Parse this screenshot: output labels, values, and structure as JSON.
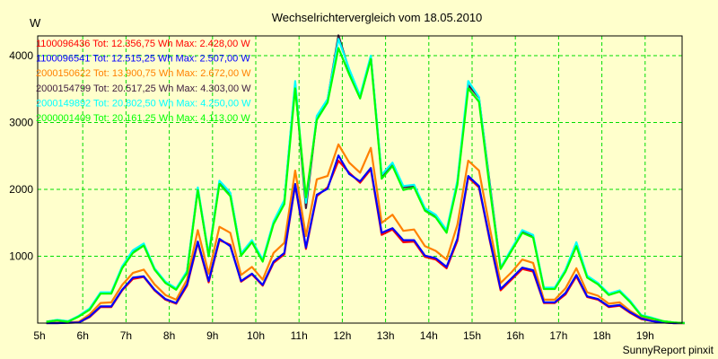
{
  "chart_data": {
    "type": "line",
    "title": "Wechselrichtervergleich vom 18.05.2010",
    "ylabel": "W",
    "xlabel": "",
    "footer": "SunnyReport pinxit",
    "xlim": [
      5,
      19.92
    ],
    "ylim": [
      0,
      4320
    ],
    "grid": true,
    "legend_placement": "top-left",
    "x_ticks": [
      {
        "v": 5,
        "label": "5h"
      },
      {
        "v": 6,
        "label": "6h"
      },
      {
        "v": 7,
        "label": "7h"
      },
      {
        "v": 8,
        "label": "8h"
      },
      {
        "v": 9,
        "label": "9h"
      },
      {
        "v": 10,
        "label": "10h"
      },
      {
        "v": 11,
        "label": "11h"
      },
      {
        "v": 12,
        "label": "12h"
      },
      {
        "v": 13,
        "label": "13h"
      },
      {
        "v": 14,
        "label": "14h"
      },
      {
        "v": 15,
        "label": "15h"
      },
      {
        "v": 16,
        "label": "16h"
      },
      {
        "v": 17,
        "label": "17h"
      },
      {
        "v": 18,
        "label": "18h"
      },
      {
        "v": 19,
        "label": "19h"
      }
    ],
    "y_ticks": [
      {
        "v": 1000,
        "label": "1000"
      },
      {
        "v": 2000,
        "label": "2000"
      },
      {
        "v": 3000,
        "label": "3000"
      },
      {
        "v": 4000,
        "label": "4000"
      }
    ],
    "x": [
      5.16,
      5.41,
      5.66,
      5.91,
      6.16,
      6.41,
      6.66,
      6.91,
      7.16,
      7.41,
      7.66,
      7.91,
      8.16,
      8.41,
      8.66,
      8.91,
      9.16,
      9.41,
      9.66,
      9.91,
      10.16,
      10.41,
      10.66,
      10.91,
      11.16,
      11.41,
      11.66,
      11.91,
      12.16,
      12.41,
      12.66,
      12.91,
      13.16,
      13.41,
      13.66,
      13.91,
      14.16,
      14.41,
      14.66,
      14.91,
      15.16,
      15.41,
      15.66,
      15.91,
      16.16,
      16.41,
      16.66,
      16.91,
      17.16,
      17.41,
      17.66,
      17.91,
      18.16,
      18.41,
      18.66,
      18.91,
      19.16,
      19.41,
      19.66,
      19.91
    ],
    "series": [
      {
        "name": "2000150622",
        "legend": "2000150622 Tot: 13.900,75 Wh Max: 2.672,00 W",
        "color": "#ff8000",
        "values": [
          0,
          5,
          10,
          20,
          130,
          300,
          310,
          570,
          750,
          800,
          580,
          420,
          350,
          650,
          1390,
          740,
          1440,
          1350,
          720,
          840,
          650,
          1050,
          1200,
          2280,
          1300,
          2150,
          2200,
          2672,
          2400,
          2250,
          2620,
          1500,
          1620,
          1380,
          1400,
          1150,
          1080,
          950,
          1470,
          2430,
          2280,
          1420,
          600,
          760,
          950,
          900,
          350,
          350,
          520,
          820,
          460,
          410,
          290,
          310,
          180,
          80,
          40,
          15,
          0,
          0
        ]
      },
      {
        "name": "1100096436",
        "legend": "1100096436 Tot: 12.356,75 Wh Max: 2.428,00 W",
        "color": "#ff0000",
        "values": [
          0,
          0,
          5,
          10,
          90,
          240,
          240,
          490,
          660,
          690,
          490,
          350,
          290,
          560,
          1200,
          610,
          1240,
          1170,
          620,
          730,
          560,
          900,
          1030,
          2060,
          1110,
          1900,
          2030,
          2428,
          2250,
          2100,
          2300,
          1320,
          1400,
          1210,
          1220,
          990,
          950,
          820,
          1230,
          2180,
          2030,
          1230,
          490,
          650,
          810,
          770,
          300,
          300,
          430,
          700,
          390,
          350,
          240,
          260,
          150,
          60,
          30,
          10,
          0,
          0
        ]
      },
      {
        "name": "1100096541",
        "legend": "1100096541 Tot: 12.515,25 Wh Max: 2.507,00 W",
        "color": "#0000ff",
        "values": [
          0,
          0,
          5,
          10,
          100,
          250,
          250,
          500,
          680,
          700,
          500,
          360,
          300,
          580,
          1220,
          630,
          1260,
          1150,
          630,
          740,
          570,
          920,
          1050,
          2080,
          1130,
          1920,
          2010,
          2507,
          2230,
          2120,
          2320,
          1350,
          1420,
          1240,
          1240,
          1010,
          970,
          840,
          1260,
          2200,
          2050,
          1250,
          510,
          670,
          830,
          790,
          310,
          310,
          450,
          720,
          400,
          360,
          250,
          270,
          160,
          70,
          30,
          10,
          0,
          0
        ]
      },
      {
        "name": "2000154799",
        "legend": "2000154799 Tot: 20.517,25 Wh Max: 4.303,00 W",
        "color": "#402040",
        "values": [
          20,
          45,
          25,
          105,
          210,
          450,
          450,
          840,
          1070,
          1180,
          810,
          610,
          510,
          770,
          2010,
          1010,
          2110,
          1940,
          1030,
          1230,
          940,
          1500,
          1820,
          3580,
          1720,
          3080,
          3340,
          4303,
          3780,
          3380,
          3990,
          2190,
          2380,
          2030,
          2050,
          1700,
          1600,
          1370,
          2100,
          3560,
          3370,
          2080,
          820,
          1100,
          1370,
          1300,
          520,
          520,
          790,
          1180,
          700,
          590,
          430,
          480,
          320,
          115,
          75,
          30,
          10,
          0
        ]
      },
      {
        "name": "2000149892",
        "legend": "2000149892 Tot: 20.802,50 Wh Max: 4.250,00 W",
        "color": "#00ffff",
        "values": [
          20,
          50,
          30,
          110,
          220,
          460,
          460,
          850,
          1090,
          1190,
          820,
          620,
          520,
          780,
          2030,
          1030,
          2130,
          1950,
          1040,
          1240,
          950,
          1520,
          1840,
          3620,
          1800,
          3100,
          3350,
          4250,
          3800,
          3400,
          4000,
          2220,
          2400,
          2050,
          2070,
          1720,
          1620,
          1390,
          2130,
          3620,
          3380,
          2050,
          830,
          1110,
          1390,
          1320,
          530,
          530,
          800,
          1210,
          710,
          600,
          440,
          490,
          330,
          120,
          80,
          30,
          10,
          0
        ]
      },
      {
        "name": "2000001409",
        "legend": "2000001409 Tot: 20.161,25 Wh Max: 4.113,00 W",
        "color": "#00ff00",
        "values": [
          20,
          40,
          20,
          100,
          200,
          440,
          440,
          820,
          1050,
          1160,
          800,
          600,
          500,
          750,
          1990,
          1000,
          2080,
          1900,
          1010,
          1210,
          920,
          1480,
          1780,
          3510,
          1880,
          3040,
          3300,
          4113,
          3720,
          3360,
          3950,
          2160,
          2350,
          1990,
          2030,
          1680,
          1580,
          1350,
          2070,
          3510,
          3310,
          2000,
          810,
          1080,
          1350,
          1280,
          510,
          510,
          770,
          1150,
          680,
          580,
          420,
          470,
          310,
          110,
          70,
          30,
          10,
          0
        ]
      }
    ],
    "legend_order": [
      1,
      2,
      0,
      3,
      4,
      5
    ]
  }
}
